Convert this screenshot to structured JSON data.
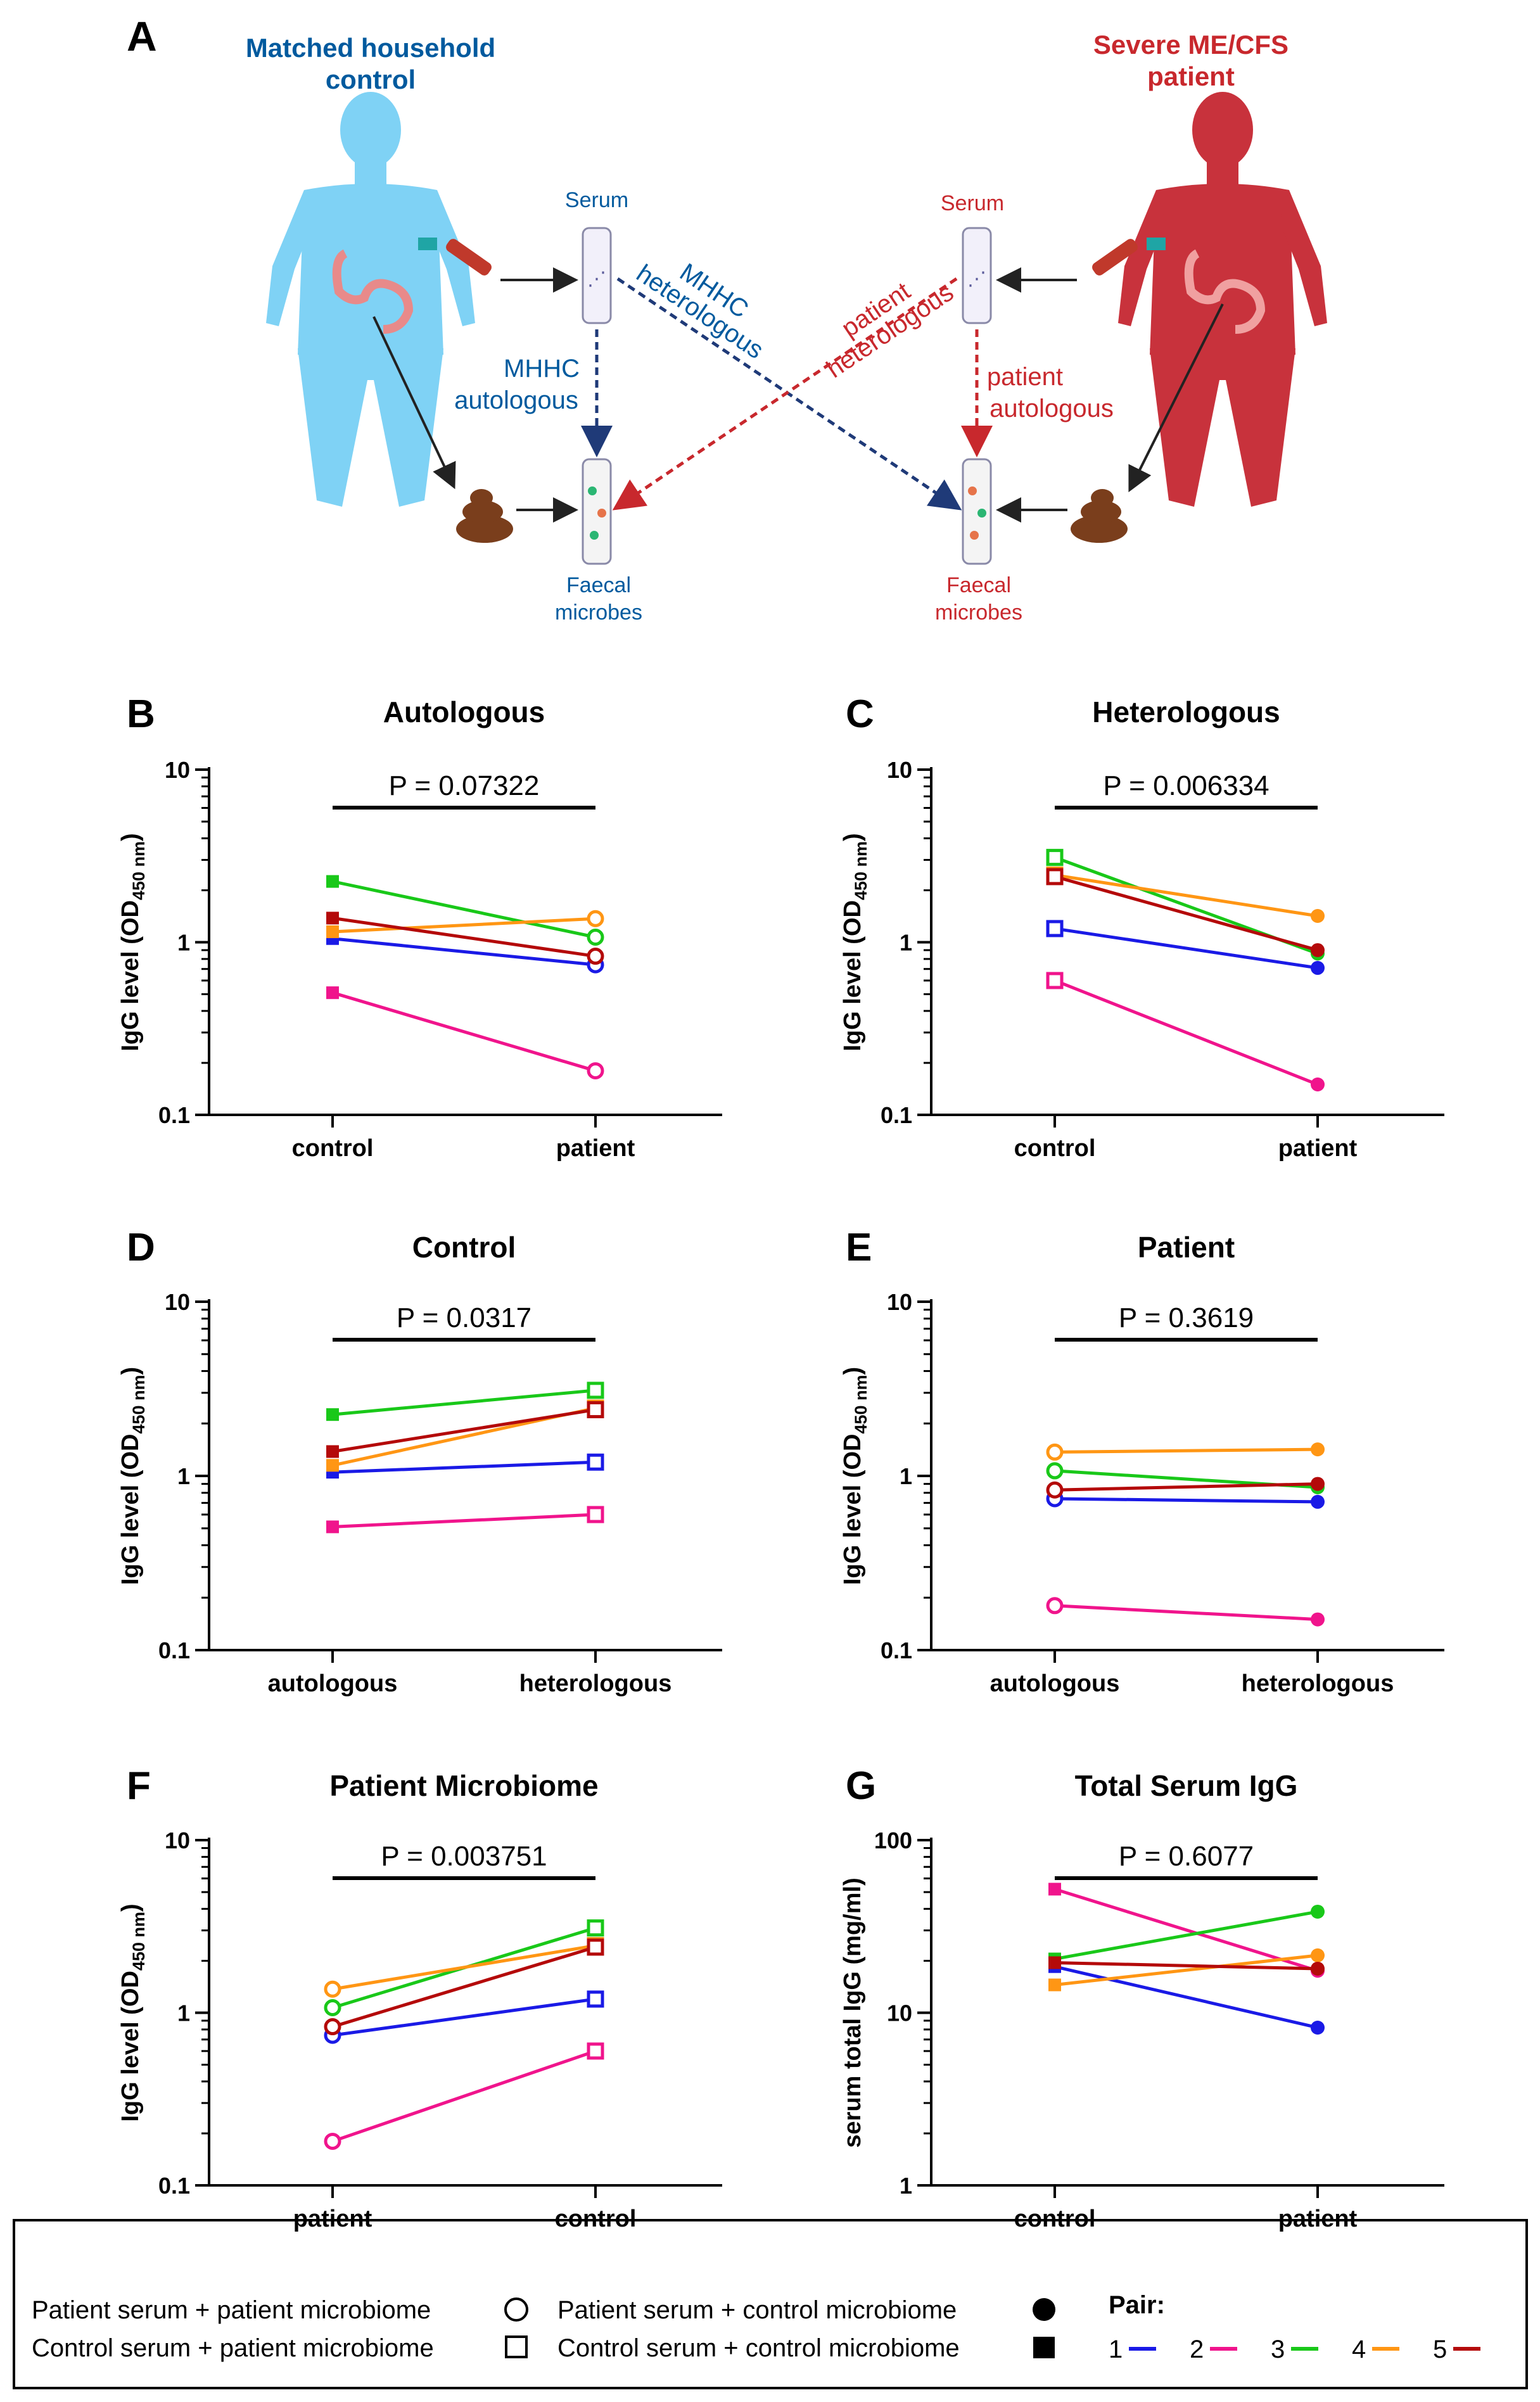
{
  "colors": {
    "pair_1": "#1a1ae6",
    "pair_2": "#f0148c",
    "pair_3": "#19c819",
    "pair_4": "#ff9614",
    "pair_5": "#b40a0a",
    "control_blue": "#005a9e",
    "patient_red": "#c8282d",
    "control_body": "#7fd2f5",
    "patient_body": "#c8323c"
  },
  "panel_a": {
    "letter": "A",
    "control_title_1": "Matched household",
    "control_title_2": "control",
    "patient_title_1": "Severe ME/CFS",
    "patient_title_2": "patient",
    "serum_left": "Serum",
    "serum_right": "Serum",
    "mhhc_auto_1": "MHHC",
    "mhhc_auto_2": "autologous",
    "mhhc_hetero_1": "MHHC",
    "mhhc_hetero_2": "heterologous",
    "patient_hetero_1": "patient",
    "patient_hetero_2": "heterologous",
    "patient_auto_1": "patient",
    "patient_auto_2": "autologous",
    "faecal_left_1": "Faecal",
    "faecal_left_2": "microbes",
    "faecal_right_1": "Faecal",
    "faecal_right_2": "microbes"
  },
  "legend": {
    "pp": "Patient serum + patient microbiome",
    "cp": "Control serum + patient microbiome",
    "pc": "Patient serum + control microbiome",
    "cc": "Control serum + control microbiome",
    "pair_title": "Pair:",
    "pairs": [
      "1",
      "2",
      "3",
      "4",
      "5"
    ]
  },
  "chart_data": [
    {
      "id": "B",
      "letter": "B",
      "type": "line",
      "scale": "log",
      "title": "Autologous",
      "pvalue": "P = 0.07322",
      "ylabel_main": "IgG level (OD",
      "ylabel_sub": "450 nm",
      "ylabel_end": ")",
      "ylim": [
        0.1,
        10
      ],
      "ticks": [
        "0.1",
        "1",
        "10"
      ],
      "tick_values": [
        0.1,
        1,
        10
      ],
      "categories": [
        "control",
        "patient"
      ],
      "markers": [
        [
          "square-filled",
          "circle-open"
        ]
      ],
      "series": [
        {
          "name": "1",
          "values": [
            1.05,
            0.74
          ]
        },
        {
          "name": "2",
          "values": [
            0.51,
            0.18
          ]
        },
        {
          "name": "3",
          "values": [
            2.25,
            1.07
          ]
        },
        {
          "name": "4",
          "values": [
            1.15,
            1.37
          ]
        },
        {
          "name": "5",
          "values": [
            1.38,
            0.83
          ]
        }
      ]
    },
    {
      "id": "C",
      "letter": "C",
      "type": "line",
      "scale": "log",
      "title": "Heterologous",
      "pvalue": "P = 0.006334",
      "ylabel_main": "IgG level (OD",
      "ylabel_sub": "450 nm",
      "ylabel_end": ")",
      "ylim": [
        0.1,
        10
      ],
      "ticks": [
        "0.1",
        "1",
        "10"
      ],
      "tick_values": [
        0.1,
        1,
        10
      ],
      "categories": [
        "control",
        "patient"
      ],
      "markers": [
        [
          "square-open",
          "circle-filled"
        ]
      ],
      "series": [
        {
          "name": "1",
          "values": [
            1.2,
            0.71
          ]
        },
        {
          "name": "2",
          "values": [
            0.6,
            0.15
          ]
        },
        {
          "name": "3",
          "values": [
            3.1,
            0.86
          ]
        },
        {
          "name": "4",
          "values": [
            2.45,
            1.42
          ]
        },
        {
          "name": "5",
          "values": [
            2.4,
            0.9
          ]
        }
      ]
    },
    {
      "id": "D",
      "letter": "D",
      "type": "line",
      "scale": "log",
      "title": "Control",
      "pvalue": "P = 0.0317",
      "ylabel_main": "IgG level (OD",
      "ylabel_sub": "450 nm",
      "ylabel_end": ")",
      "ylim": [
        0.1,
        10
      ],
      "ticks": [
        "0.1",
        "1",
        "10"
      ],
      "tick_values": [
        0.1,
        1,
        10
      ],
      "categories": [
        "autologous",
        "heterologous"
      ],
      "markers": [
        [
          "square-filled",
          "square-open"
        ]
      ],
      "series": [
        {
          "name": "1",
          "values": [
            1.05,
            1.2
          ]
        },
        {
          "name": "2",
          "values": [
            0.51,
            0.6
          ]
        },
        {
          "name": "3",
          "values": [
            2.25,
            3.1
          ]
        },
        {
          "name": "4",
          "values": [
            1.15,
            2.45
          ]
        },
        {
          "name": "5",
          "values": [
            1.38,
            2.4
          ]
        }
      ]
    },
    {
      "id": "E",
      "letter": "E",
      "type": "line",
      "scale": "log",
      "title": "Patient",
      "pvalue": "P = 0.3619",
      "ylabel_main": "IgG level (OD",
      "ylabel_sub": "450 nm",
      "ylabel_end": ")",
      "ylim": [
        0.1,
        10
      ],
      "ticks": [
        "0.1",
        "1",
        "10"
      ],
      "tick_values": [
        0.1,
        1,
        10
      ],
      "categories": [
        "autologous",
        "heterologous"
      ],
      "markers": [
        [
          "circle-open",
          "circle-filled"
        ]
      ],
      "series": [
        {
          "name": "1",
          "values": [
            0.74,
            0.71
          ]
        },
        {
          "name": "2",
          "values": [
            0.18,
            0.15
          ]
        },
        {
          "name": "3",
          "values": [
            1.07,
            0.86
          ]
        },
        {
          "name": "4",
          "values": [
            1.37,
            1.42
          ]
        },
        {
          "name": "5",
          "values": [
            0.83,
            0.9
          ]
        }
      ]
    },
    {
      "id": "F",
      "letter": "F",
      "type": "line",
      "scale": "log",
      "title": "Patient Microbiome",
      "pvalue": "P = 0.003751",
      "ylabel_main": "IgG level (OD",
      "ylabel_sub": "450 nm",
      "ylabel_end": ")",
      "ylim": [
        0.1,
        10
      ],
      "ticks": [
        "0.1",
        "1",
        "10"
      ],
      "tick_values": [
        0.1,
        1,
        10
      ],
      "categories": [
        "patient",
        "control"
      ],
      "markers": [
        [
          "circle-open",
          "square-open"
        ]
      ],
      "series": [
        {
          "name": "1",
          "values": [
            0.74,
            1.2
          ]
        },
        {
          "name": "2",
          "values": [
            0.18,
            0.6
          ]
        },
        {
          "name": "3",
          "values": [
            1.07,
            3.1
          ]
        },
        {
          "name": "4",
          "values": [
            1.37,
            2.45
          ]
        },
        {
          "name": "5",
          "values": [
            0.83,
            2.4
          ]
        }
      ]
    },
    {
      "id": "G",
      "letter": "G",
      "type": "line",
      "scale": "log",
      "title": "Total Serum IgG",
      "pvalue": "P = 0.6077",
      "ylabel_main": "serum total IgG (mg/ml)",
      "ylabel_sub": "",
      "ylabel_end": "",
      "ylim": [
        1,
        100
      ],
      "ticks": [
        "1",
        "10",
        "100"
      ],
      "tick_values": [
        1,
        10,
        100
      ],
      "categories": [
        "control",
        "patient"
      ],
      "markers": [
        [
          "square-filled",
          "circle-filled"
        ]
      ],
      "series": [
        {
          "name": "1",
          "values": [
            18.5,
            8.2
          ]
        },
        {
          "name": "2",
          "values": [
            52,
            17.5
          ]
        },
        {
          "name": "3",
          "values": [
            20.5,
            38.5
          ]
        },
        {
          "name": "4",
          "values": [
            14.5,
            21.5
          ]
        },
        {
          "name": "5",
          "values": [
            19.5,
            18
          ]
        }
      ]
    }
  ]
}
